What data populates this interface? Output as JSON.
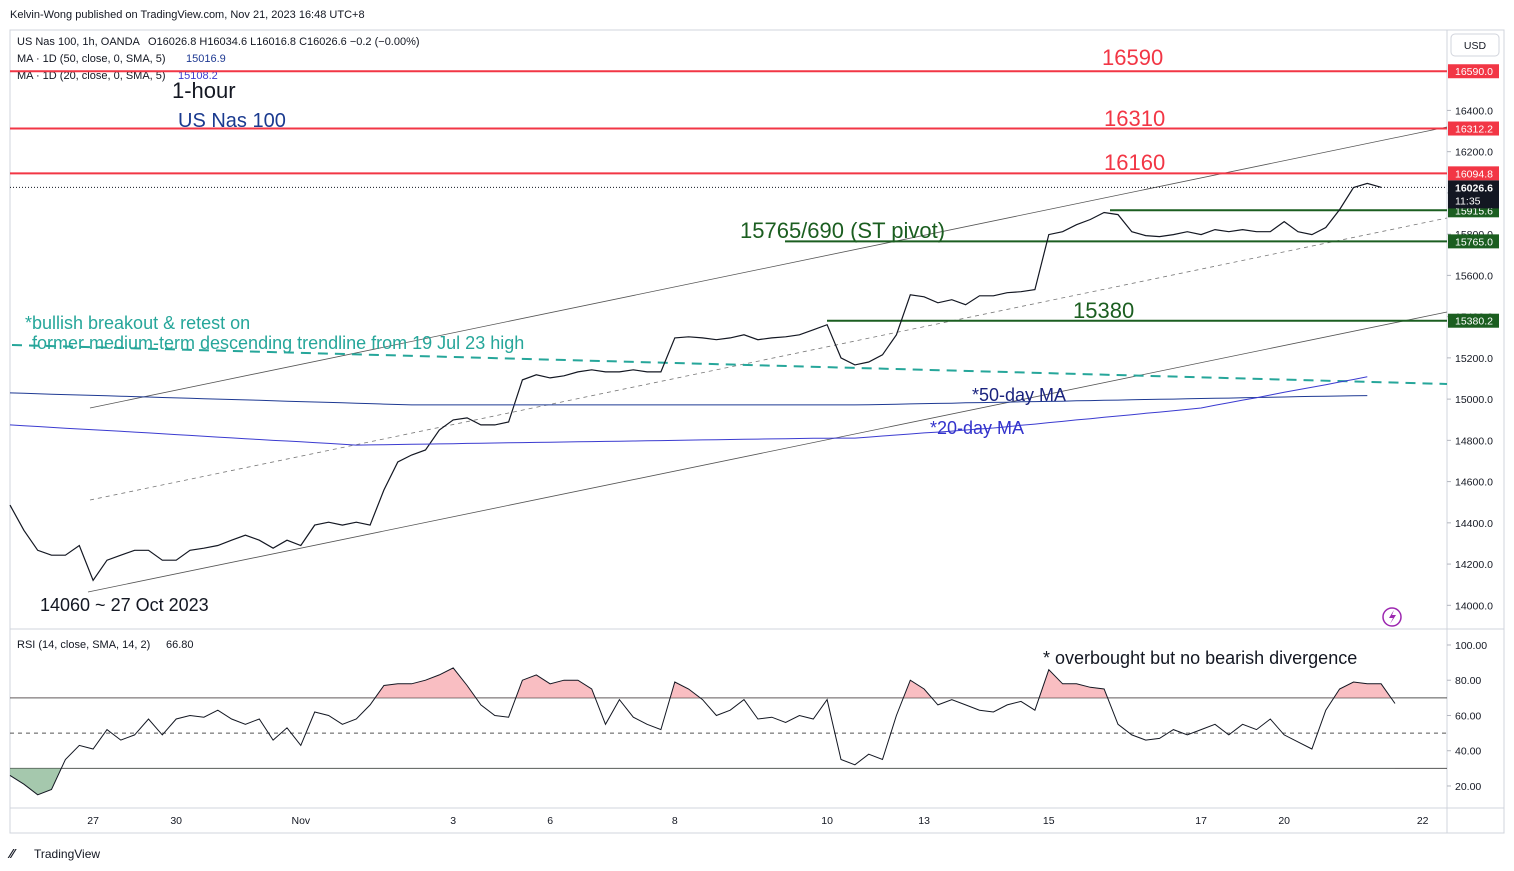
{
  "header": {
    "byline": "Kelvin-Wong published on TradingView.com, Nov 21, 2023 16:48 UTC+8",
    "ohlc": "O16026.8 H16034.6 L16016.8 C16026.6 −0.2 (−0.00%)",
    "currency": "USD",
    "brand": "TradingView"
  },
  "chart_data": [
    {
      "type": "line",
      "categories": [
        null,
        null,
        null,
        null,
        null,
        null,
        "27",
        null,
        null,
        null,
        null,
        null,
        "30",
        null,
        null,
        null,
        null,
        null,
        null,
        null,
        null,
        "Nov",
        null,
        null,
        null,
        null,
        null,
        null,
        null,
        null,
        null,
        null,
        "3",
        null,
        null,
        null,
        null,
        null,
        null,
        "6",
        null,
        null,
        null,
        null,
        null,
        null,
        null,
        null,
        "8",
        null,
        null,
        null,
        null,
        null,
        null,
        null,
        null,
        null,
        null,
        "10",
        null,
        null,
        null,
        null,
        null,
        null,
        "13",
        null,
        null,
        null,
        null,
        null,
        null,
        null,
        null,
        "15",
        null,
        null,
        null,
        null,
        null,
        null,
        null,
        null,
        null,
        null,
        "17",
        null,
        null,
        null,
        null,
        null,
        "20",
        null,
        null,
        null,
        null,
        null,
        null,
        null,
        null,
        null,
        "22",
        null
      ],
      "series": [
        {
          "name": "US Nas 100, 1h, OANDA",
          "color": "#131722",
          "values": [
            14486,
            14364,
            14267,
            14243,
            14243,
            14290,
            14121,
            14219,
            14243,
            14267,
            14267,
            14219,
            14219,
            14267,
            14277,
            14290,
            14316,
            14340,
            14316,
            14277,
            14316,
            14290,
            14389,
            14403,
            14389,
            14403,
            14389,
            14559,
            14695,
            14729,
            14753,
            14850,
            14899,
            14909,
            14875,
            14875,
            14889,
            15093,
            15118,
            15103,
            15113,
            15132,
            15142,
            15132,
            15132,
            15142,
            15132,
            15132,
            15297,
            15302,
            15297,
            15288,
            15297,
            15312,
            15288,
            15297,
            15302,
            15312,
            15336,
            15361,
            15200,
            15166,
            15180,
            15215,
            15312,
            15506,
            15496,
            15467,
            15482,
            15458,
            15501,
            15501,
            15516,
            15521,
            15531,
            15798,
            15812,
            15846,
            15871,
            15905,
            15895,
            15812,
            15793,
            15788,
            15798,
            15812,
            15798,
            15822,
            15812,
            15822,
            15812,
            15812,
            15861,
            15812,
            15798,
            15832,
            15919,
            16026,
            16046,
            16027,
            null,
            null,
            null,
            null
          ]
        },
        {
          "name": "MA · 1D (50, close, 0, SMA, 5)",
          "color": "#1f3a93",
          "legend_value": "15016.9",
          "values": [
            15030,
            15028,
            15026,
            15024,
            15022,
            15020,
            15018,
            15016,
            15014,
            15012,
            15010,
            15008,
            15006,
            15004,
            15002,
            15000,
            14998,
            14996,
            14994,
            14992,
            14990,
            14988,
            14986,
            14984,
            14982,
            14980,
            14978,
            14976,
            14974,
            14972,
            14972,
            14972,
            14972,
            14972,
            14972,
            14972,
            14972,
            14972,
            14972,
            14972,
            14972,
            14972,
            14972,
            14972,
            14972,
            14972,
            14972,
            14972,
            14972,
            14972,
            14972,
            14972,
            14972,
            14972,
            14972,
            14972,
            14972,
            14972,
            14972,
            14972,
            14972,
            14972,
            14973,
            14974,
            14975,
            14977,
            14978,
            14979,
            14980,
            14982,
            14983,
            14984,
            14985,
            14987,
            14988,
            14989,
            14990,
            14992,
            14993,
            14994,
            14995,
            14997,
            14998,
            14999,
            15000,
            15002,
            15003,
            15004,
            15005,
            15007,
            15008,
            15009,
            15010,
            15012,
            15013,
            15014,
            15015,
            15016,
            15017,
            null,
            null,
            null,
            null,
            null
          ]
        },
        {
          "name": "MA · 1D (20, close, 0, SMA, 5)",
          "color": "#3b3bd0",
          "legend_value": "15108.2",
          "values": [
            14875,
            14871,
            14867,
            14863,
            14859,
            14855,
            14851,
            14848,
            14844,
            14840,
            14836,
            14832,
            14828,
            14824,
            14820,
            14816,
            14812,
            14808,
            14804,
            14800,
            14797,
            14793,
            14789,
            14785,
            14781,
            14777,
            14778,
            14779,
            14780,
            14781,
            14782,
            14783,
            14784,
            14785,
            14786,
            14787,
            14788,
            14789,
            14790,
            14791,
            14792,
            14793,
            14794,
            14795,
            14796,
            14797,
            14798,
            14799,
            14800,
            14801,
            14802,
            14803,
            14804,
            14805,
            14806,
            14807,
            14808,
            14809,
            14810,
            14810,
            14811,
            14811,
            14816,
            14821,
            14826,
            14831,
            14836,
            14840,
            14845,
            14850,
            14855,
            14860,
            14866,
            14873,
            14879,
            14886,
            14892,
            14899,
            14905,
            14912,
            14918,
            14924,
            14931,
            14937,
            14944,
            14950,
            14957,
            14970,
            14982,
            14995,
            15007,
            15020,
            15033,
            15045,
            15058,
            15070,
            15083,
            15095,
            15108,
            null,
            null,
            null,
            null,
            null
          ]
        }
      ],
      "ylim": [
        13890,
        16790
      ],
      "yticks": [
        {
          "value": 14000,
          "label": "14000.0"
        },
        {
          "value": 14200,
          "label": "14200.0"
        },
        {
          "value": 14400,
          "label": "14400.0"
        },
        {
          "value": 14600,
          "label": "14600.0"
        },
        {
          "value": 14800,
          "label": "14800.0"
        },
        {
          "value": 15000,
          "label": "15000.0"
        },
        {
          "value": 15200,
          "label": "15200.0"
        },
        {
          "value": 15400,
          "label": "15400.0"
        },
        {
          "value": 15600,
          "label": "15600.0"
        },
        {
          "value": 15800,
          "label": "15800.0"
        },
        {
          "value": 16000,
          "label": "16000.0"
        },
        {
          "value": 16200,
          "label": "16200.0"
        },
        {
          "value": 16400,
          "label": "16400.0"
        }
      ],
      "grid": false,
      "levels": [
        {
          "value": 16590,
          "label": "16590.0",
          "color": "#f23645"
        },
        {
          "value": 16312.2,
          "label": "16312.2",
          "color": "#f23645"
        },
        {
          "value": 16094.8,
          "label": "16094.8",
          "color": "#f23645"
        },
        {
          "value": 15915.6,
          "label": "15915.6",
          "color": "#1b5e20"
        },
        {
          "value": 15765,
          "label": "15765.0",
          "color": "#1b5e20"
        },
        {
          "value": 15380.2,
          "label": "15380.2",
          "color": "#1b5e20"
        }
      ],
      "last": {
        "value": 16026.6,
        "label": "16026.6",
        "countdown": "11:35"
      },
      "annotations": [
        {
          "text": "1-hour",
          "color": "#131722"
        },
        {
          "text": "US Nas 100",
          "color": "#1a3a8f"
        },
        {
          "text": "16590",
          "color": "#f23645"
        },
        {
          "text": "16310",
          "color": "#f23645"
        },
        {
          "text": "16160",
          "color": "#f23645"
        },
        {
          "text": "15765/690 (ST pivot)",
          "color": "#1b5e20"
        },
        {
          "text": "15380",
          "color": "#1b5e20"
        },
        {
          "text": "*bullish breakout & retest on",
          "color": "#26a69a"
        },
        {
          "text": "former medium-term descending trendline from 19 Jul 23 high",
          "color": "#26a69a"
        },
        {
          "text": "*50-day MA",
          "color": "#1a237e"
        },
        {
          "text": "*20-day MA",
          "color": "#3333cc"
        },
        {
          "text": "14060 ~ 27 Oct 2023",
          "color": "#131722"
        }
      ]
    },
    {
      "type": "line",
      "series": [
        {
          "name": "RSI (14, close, SMA, 14, 2)",
          "color": "#131722",
          "legend_value": "66.80",
          "values": [
            26,
            21,
            15,
            18,
            35,
            43,
            41,
            52,
            46,
            49,
            58,
            49,
            58,
            60,
            59,
            63,
            58,
            55,
            58,
            46,
            53,
            43,
            62,
            60,
            55,
            58,
            66,
            77,
            78,
            78,
            80,
            83,
            87,
            77,
            66,
            60,
            59,
            80,
            83,
            78,
            80,
            80,
            75,
            55,
            69,
            59,
            55,
            52,
            79,
            75,
            69,
            60,
            63,
            69,
            58,
            59,
            56,
            60,
            58,
            69,
            35,
            32,
            38,
            35,
            60,
            80,
            75,
            66,
            69,
            66,
            63,
            62,
            66,
            68,
            63,
            86,
            78,
            78,
            76,
            75,
            55,
            49,
            46,
            47,
            52,
            49,
            52,
            55,
            49,
            55,
            52,
            58,
            49,
            45,
            41,
            63,
            75,
            79,
            78,
            78,
            66.8,
            null,
            null,
            null
          ]
        }
      ],
      "ylim": [
        7.5,
        108.5
      ],
      "yticks": [
        {
          "value": 20,
          "label": "20.00"
        },
        {
          "value": 40,
          "label": "40.00"
        },
        {
          "value": 60,
          "label": "60.00"
        },
        {
          "value": 80,
          "label": "80.00"
        },
        {
          "value": 100,
          "label": "100.00"
        }
      ],
      "overbought": 70,
      "midline": 50,
      "oversold": 30,
      "overbought_fill": "#f7a3a8",
      "oversold_fill": "#7fb08a",
      "annotations": [
        {
          "text": "* overbought but no bearish divergence",
          "color": "#131722"
        }
      ]
    }
  ]
}
